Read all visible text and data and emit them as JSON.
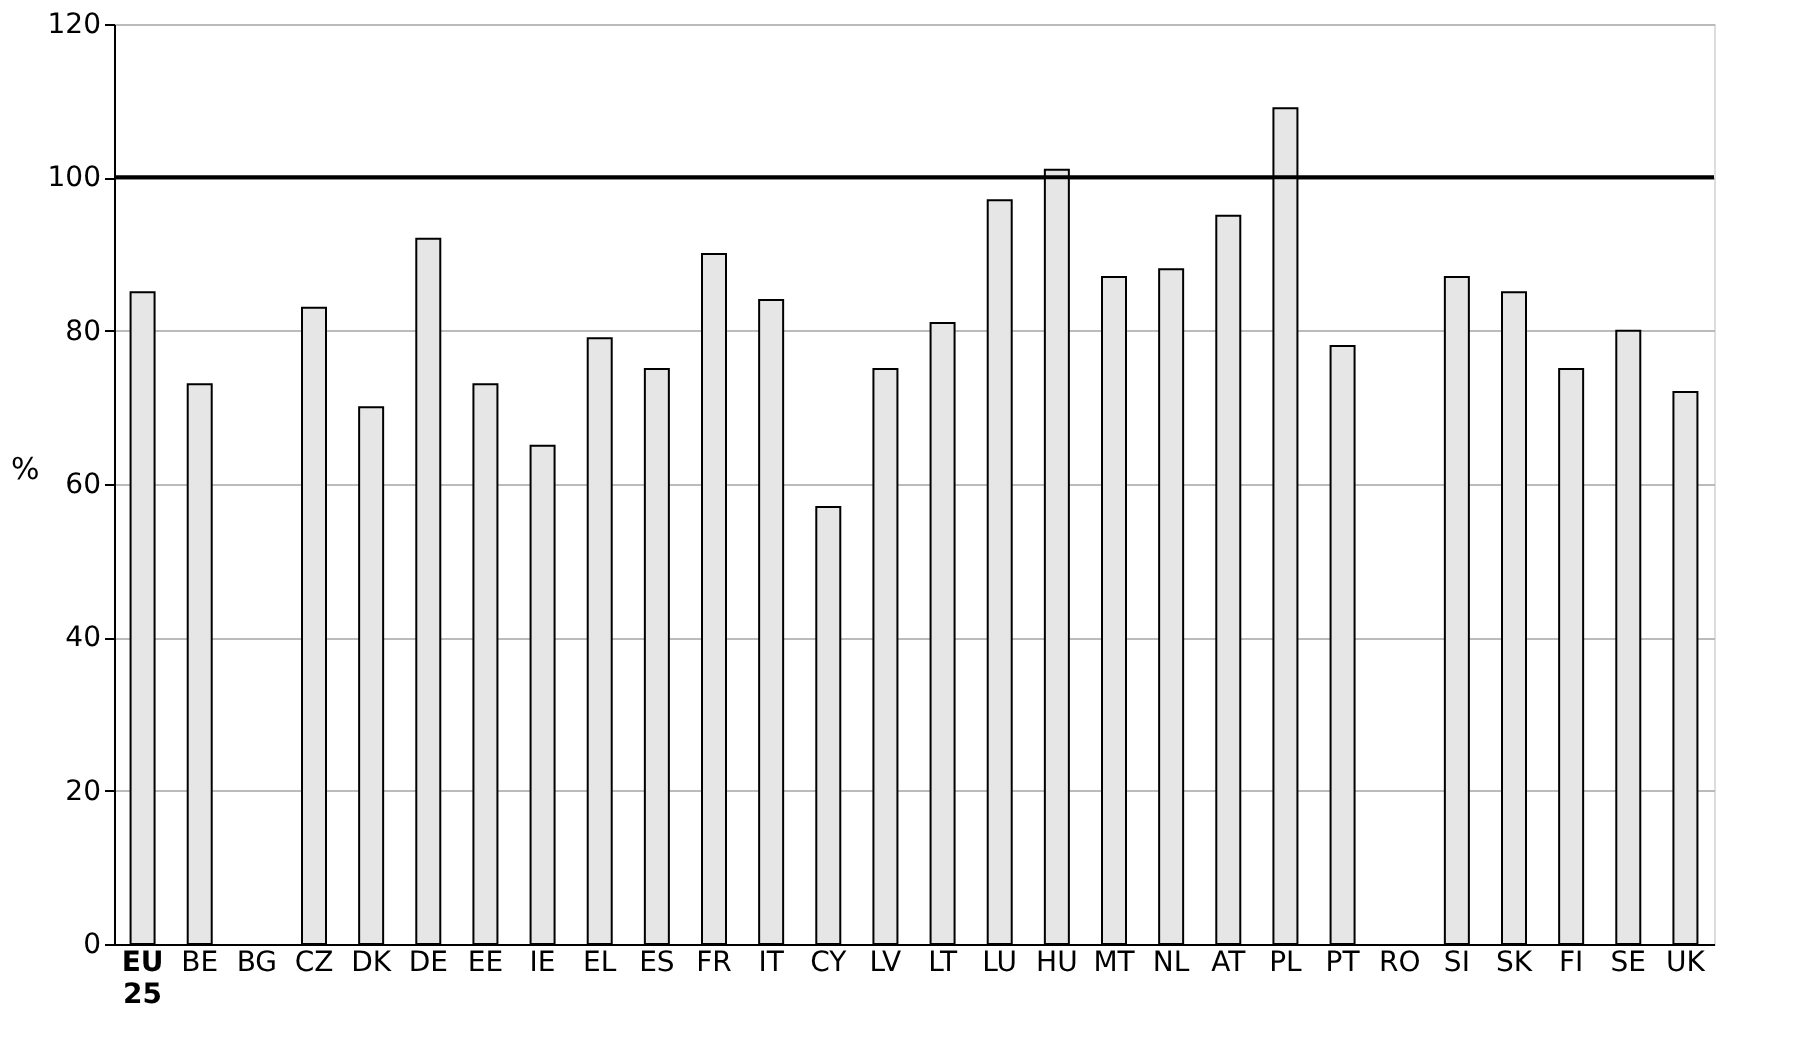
{
  "chart_data": {
    "type": "bar",
    "ylabel": "%",
    "categories": [
      "EU 25",
      "BE",
      "BG",
      "CZ",
      "DK",
      "DE",
      "EE",
      "IE",
      "EL",
      "ES",
      "FR",
      "IT",
      "CY",
      "LV",
      "LT",
      "LU",
      "HU",
      "MT",
      "NL",
      "AT",
      "PL",
      "PT",
      "RO",
      "SI",
      "SK",
      "FI",
      "SE",
      "UK"
    ],
    "values": [
      85,
      73,
      null,
      83,
      70,
      92,
      73,
      65,
      79,
      75,
      90,
      84,
      57,
      75,
      81,
      97,
      101,
      87,
      88,
      95,
      109,
      78,
      null,
      87,
      85,
      75,
      80,
      72
    ],
    "color": "#e6e6e6",
    "ylim": [
      0,
      120
    ],
    "yticks": [
      0,
      20,
      40,
      60,
      80,
      100,
      120
    ],
    "grid": "y",
    "ref_lines": [
      {
        "axis": "y",
        "value": 100,
        "color": "#000000"
      }
    ]
  }
}
